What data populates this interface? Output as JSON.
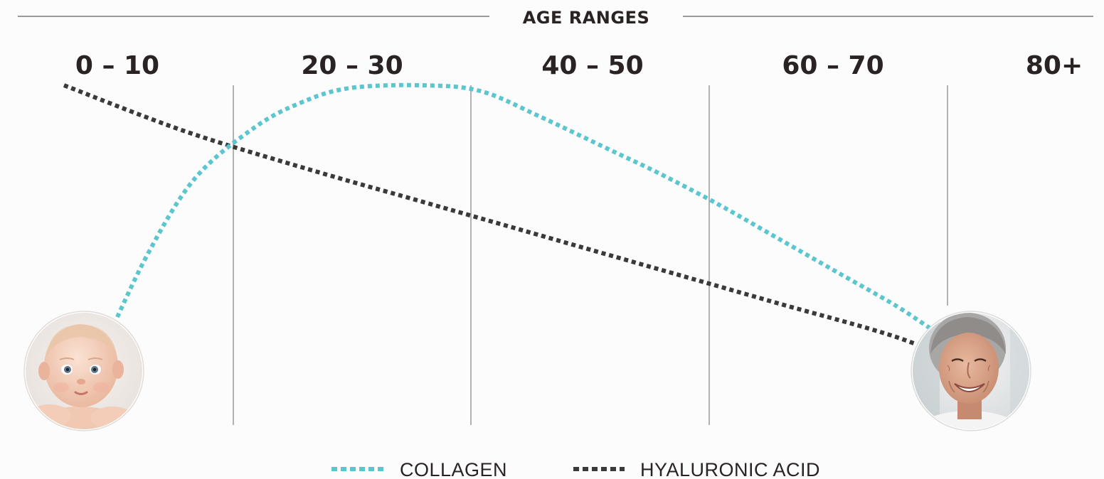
{
  "chart_data": {
    "type": "line",
    "title": "AGE RANGES",
    "categories": [
      "0 – 10",
      "20 – 30",
      "40 – 50",
      "60 – 70",
      "80+"
    ],
    "ylim": [
      0,
      100
    ],
    "series": [
      {
        "name": "COLLAGEN",
        "color": "#5cc6cf",
        "style": "dotted",
        "x": [
          0.17,
          0.35,
          0.55,
          0.8,
          1.0,
          1.2,
          1.5,
          1.75,
          2.0,
          2.3,
          2.5,
          2.75,
          3.0,
          3.25,
          3.5,
          3.7,
          3.84
        ],
        "y": [
          8,
          40,
          67,
          85,
          94,
          99,
          100,
          98,
          89,
          77,
          69,
          58,
          46,
          34,
          22,
          11,
          5
        ]
      },
      {
        "name": "HYALURONIC ACID",
        "color": "#3a3a3a",
        "style": "dotted",
        "x": [
          0.0,
          0.5,
          1.0,
          1.5,
          2.0,
          2.5,
          3.0,
          3.5,
          3.82
        ],
        "y": [
          100,
          84,
          71,
          59,
          47,
          35,
          23,
          11,
          0
        ]
      }
    ],
    "grid": true,
    "legend": {
      "position": "bottom-center",
      "entries": [
        "COLLAGEN",
        "HYALURONIC ACID"
      ]
    },
    "background": "#fdfcfc",
    "gridline_color": "#9a9a9a",
    "text_color": "#2a2323",
    "images": [
      "baby-portrait",
      "elderly-woman-portrait"
    ]
  }
}
